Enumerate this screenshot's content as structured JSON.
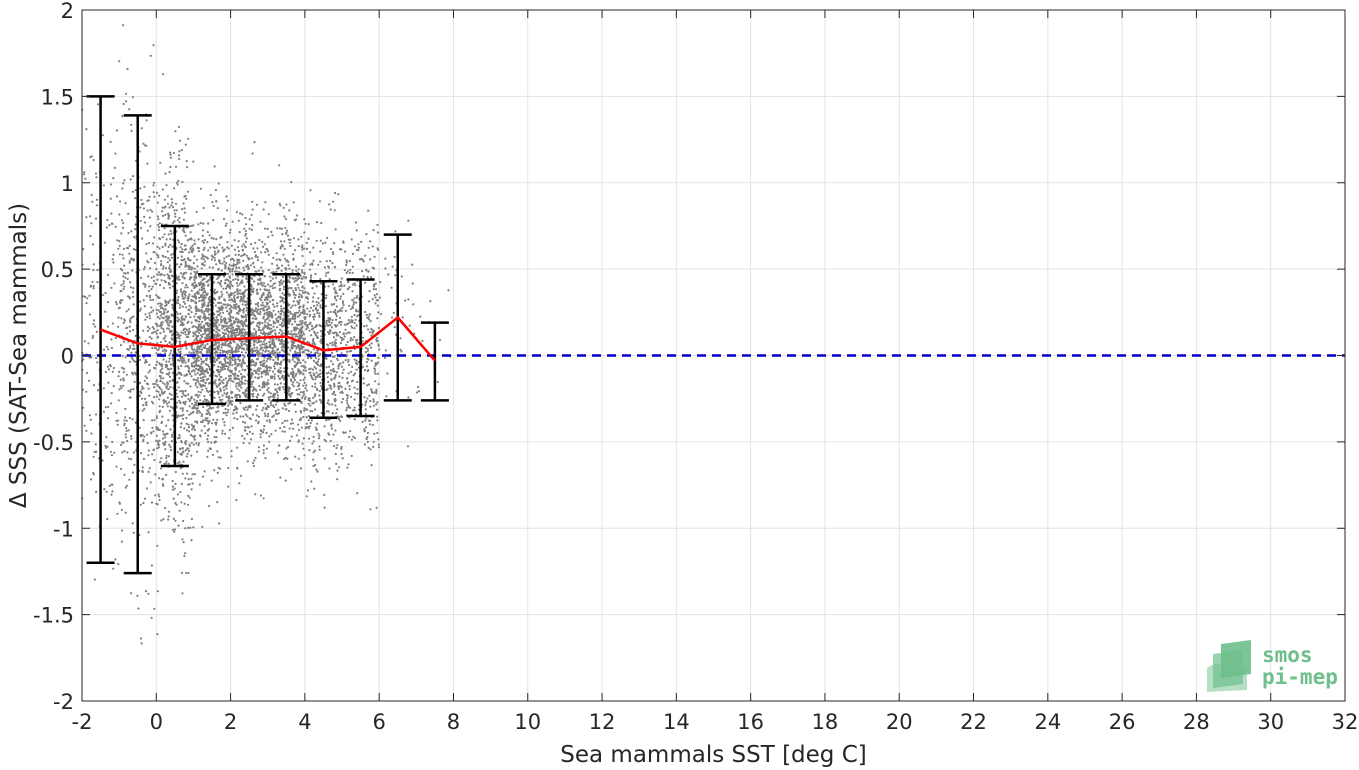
{
  "chart_data": {
    "type": "scatter",
    "title": "",
    "xlabel": "Sea mammals SST [deg C]",
    "ylabel": "Δ SSS (SAT-Sea mammals)",
    "xlim": [
      -2,
      32
    ],
    "ylim": [
      -2,
      2
    ],
    "xticks": [
      -2,
      0,
      2,
      4,
      6,
      8,
      10,
      12,
      14,
      16,
      18,
      20,
      22,
      24,
      26,
      28,
      30,
      32
    ],
    "xtick_labels": [
      "-2",
      "0",
      "2",
      "4",
      "6",
      "8",
      "10",
      "12",
      "14",
      "16",
      "18",
      "20",
      "22",
      "24",
      "26",
      "28",
      "30",
      "32"
    ],
    "yticks": [
      -2,
      -1.5,
      -1,
      -0.5,
      0,
      0.5,
      1,
      1.5,
      2
    ],
    "ytick_labels": [
      "-2",
      "-1.5",
      "-1",
      "-0.5",
      "0",
      "0.5",
      "1",
      "1.5",
      "2"
    ],
    "grid": true,
    "scatter_cloud": {
      "color": "#7f7f7f",
      "description_ranges": [
        {
          "x_range": [
            -2,
            -1
          ],
          "y_center": 0.15,
          "y_spread": 0.6,
          "count": 180
        },
        {
          "x_range": [
            -1,
            0
          ],
          "y_center": 0.07,
          "y_spread": 0.6,
          "count": 420
        },
        {
          "x_range": [
            0,
            1
          ],
          "y_center": 0.05,
          "y_spread": 0.5,
          "count": 900
        },
        {
          "x_range": [
            1,
            2
          ],
          "y_center": 0.09,
          "y_spread": 0.32,
          "count": 1100
        },
        {
          "x_range": [
            2,
            3
          ],
          "y_center": 0.1,
          "y_spread": 0.3,
          "count": 1000
        },
        {
          "x_range": [
            3,
            4
          ],
          "y_center": 0.11,
          "y_spread": 0.3,
          "count": 850
        },
        {
          "x_range": [
            4,
            5
          ],
          "y_center": 0.03,
          "y_spread": 0.33,
          "count": 550
        },
        {
          "x_range": [
            5,
            6
          ],
          "y_center": 0.05,
          "y_spread": 0.32,
          "count": 380
        },
        {
          "x_range": [
            6,
            7
          ],
          "y_center": 0.22,
          "y_spread": 0.3,
          "count": 40
        },
        {
          "x_range": [
            7,
            8
          ],
          "y_center": -0.03,
          "y_spread": 0.2,
          "count": 12
        }
      ]
    },
    "series": [
      {
        "type": "line",
        "color": "#ff0000",
        "x": [
          -1.5,
          -0.5,
          0.5,
          1.5,
          2.5,
          3.5,
          4.5,
          5.5,
          6.5,
          7.5
        ],
        "y": [
          0.15,
          0.07,
          0.05,
          0.09,
          0.1,
          0.11,
          0.03,
          0.05,
          0.22,
          -0.03
        ]
      },
      {
        "type": "errorbar",
        "color": "#000000",
        "x": [
          -1.5,
          -0.5,
          0.5,
          1.5,
          2.5,
          3.5,
          4.5,
          5.5,
          6.5,
          7.5
        ],
        "upper": [
          1.5,
          1.39,
          0.75,
          0.47,
          0.47,
          0.47,
          0.43,
          0.44,
          0.7,
          0.19
        ],
        "lower": [
          -1.2,
          -1.26,
          -0.64,
          -0.28,
          -0.26,
          -0.26,
          -0.36,
          -0.35,
          -0.26,
          -0.26
        ]
      },
      {
        "type": "reference-line",
        "color": "#0000cc",
        "style": "dashed",
        "y": 0
      }
    ],
    "logo": {
      "line1": "smos",
      "line2": "pi-mep",
      "color": "#6ebf8b"
    }
  }
}
